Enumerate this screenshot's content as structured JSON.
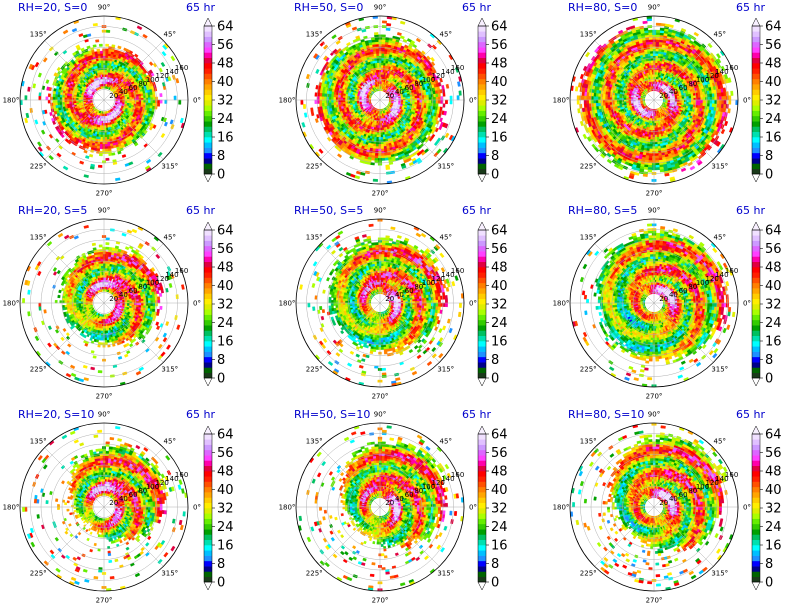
{
  "chart_data": {
    "type": "heatmap",
    "layout": "3x3 polar panels, each with its own colorbar",
    "time_label": "65 hr",
    "radial_ticks": [
      "20",
      "40",
      "60",
      "80",
      "100",
      "120",
      "140",
      "160"
    ],
    "angle_ticks": [
      "0°",
      "45°",
      "90°",
      "135°",
      "180°",
      "225°",
      "270°",
      "315°"
    ],
    "colorbar": {
      "ticks": [
        "0",
        "8",
        "16",
        "24",
        "32",
        "40",
        "48",
        "56",
        "64"
      ],
      "range": [
        0,
        64
      ],
      "extend": "both",
      "colors": [
        "#1a3a1a",
        "#006400",
        "#00008b",
        "#0000ff",
        "#1e90ff",
        "#00bfff",
        "#00ffff",
        "#00e0b0",
        "#00c060",
        "#00a000",
        "#33cc00",
        "#66ee00",
        "#aaff00",
        "#ddee00",
        "#ffee00",
        "#ffcc00",
        "#ffa500",
        "#ff7f00",
        "#ff5000",
        "#ff2000",
        "#ff0000",
        "#e00040",
        "#ff00aa",
        "#ff40ff",
        "#dd66ff",
        "#cc99ff",
        "#e0c0ff",
        "#f0e0ff"
      ]
    },
    "panels": [
      {
        "title": "RH=20, S=0",
        "time": "65 hr",
        "rh": 20,
        "s": 0
      },
      {
        "title": "RH=50, S=0",
        "time": "65 hr",
        "rh": 50,
        "s": 0
      },
      {
        "title": "RH=80, S=0",
        "time": "65 hr",
        "rh": 80,
        "s": 0
      },
      {
        "title": "RH=20, S=5",
        "time": "65 hr",
        "rh": 20,
        "s": 5
      },
      {
        "title": "RH=50, S=5",
        "time": "65 hr",
        "rh": 50,
        "s": 5
      },
      {
        "title": "RH=80, S=5",
        "time": "65 hr",
        "rh": 80,
        "s": 5
      },
      {
        "title": "RH=20, S=10",
        "time": "65 hr",
        "rh": 20,
        "s": 10
      },
      {
        "title": "RH=50, S=10",
        "time": "65 hr",
        "rh": 50,
        "s": 10
      },
      {
        "title": "RH=80, S=10",
        "time": "65 hr",
        "rh": 80,
        "s": 10
      }
    ]
  }
}
